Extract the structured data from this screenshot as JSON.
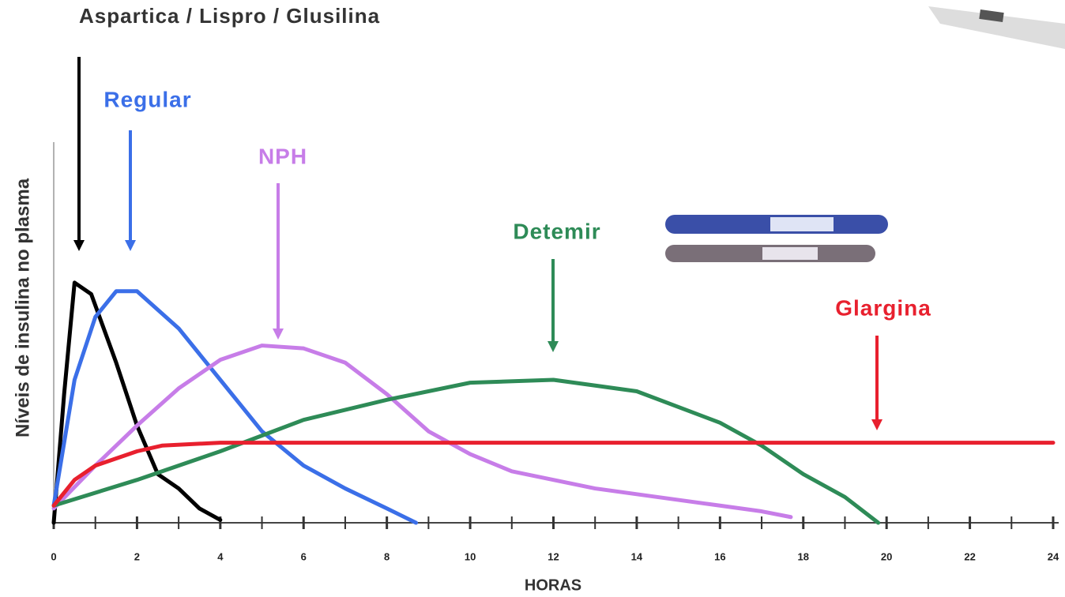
{
  "chart_data": {
    "type": "line",
    "y_label": "Níveis de insulina no plasma",
    "x_label": "HORAS",
    "xlim": [
      0,
      24
    ],
    "xticks": [
      0,
      2,
      4,
      6,
      8,
      10,
      12,
      14,
      16,
      18,
      20,
      22,
      24
    ],
    "minor_xticks": [
      1,
      3,
      5,
      7,
      9,
      11,
      13,
      15,
      17,
      19,
      21,
      23
    ],
    "ylim": [
      0,
      100
    ],
    "series": [
      {
        "name": "Aspartica / Lispro / Glusilina",
        "color": "#000000",
        "x": [
          0,
          0.25,
          0.5,
          0.9,
          1.5,
          2,
          2.5,
          3,
          3.5,
          4
        ],
        "values": [
          0,
          45,
          84,
          80,
          56,
          34,
          17,
          12,
          5,
          1
        ]
      },
      {
        "name": "Regular",
        "color": "#3b6fe8",
        "x": [
          0,
          0.5,
          1,
          1.5,
          2,
          3,
          4,
          5,
          6,
          7,
          8,
          8.7
        ],
        "values": [
          6,
          50,
          72,
          81,
          81,
          68,
          50,
          32,
          20,
          12,
          5,
          0
        ]
      },
      {
        "name": "NPH",
        "color": "#c77de8",
        "x": [
          0,
          1,
          2,
          3,
          4,
          5,
          6,
          7,
          8,
          9,
          10,
          11,
          12,
          13,
          14,
          15,
          16,
          17,
          17.7
        ],
        "values": [
          5,
          20,
          34,
          47,
          57,
          62,
          61,
          56,
          45,
          32,
          24,
          18,
          15,
          12,
          10,
          8,
          6,
          4,
          2
        ]
      },
      {
        "name": "Detemir",
        "color": "#2e8b57",
        "x": [
          0,
          2,
          4,
          6,
          8,
          10,
          12,
          14,
          16,
          17,
          18,
          19,
          19.8
        ],
        "values": [
          6,
          15,
          25,
          36,
          43,
          49,
          50,
          46,
          35,
          27,
          17,
          9,
          0
        ]
      },
      {
        "name": "Glargina",
        "color": "#e8202e",
        "x": [
          0,
          0.5,
          1,
          2,
          2.6,
          4,
          24
        ],
        "values": [
          6,
          15,
          20,
          25,
          27,
          28,
          28
        ]
      }
    ]
  }
}
